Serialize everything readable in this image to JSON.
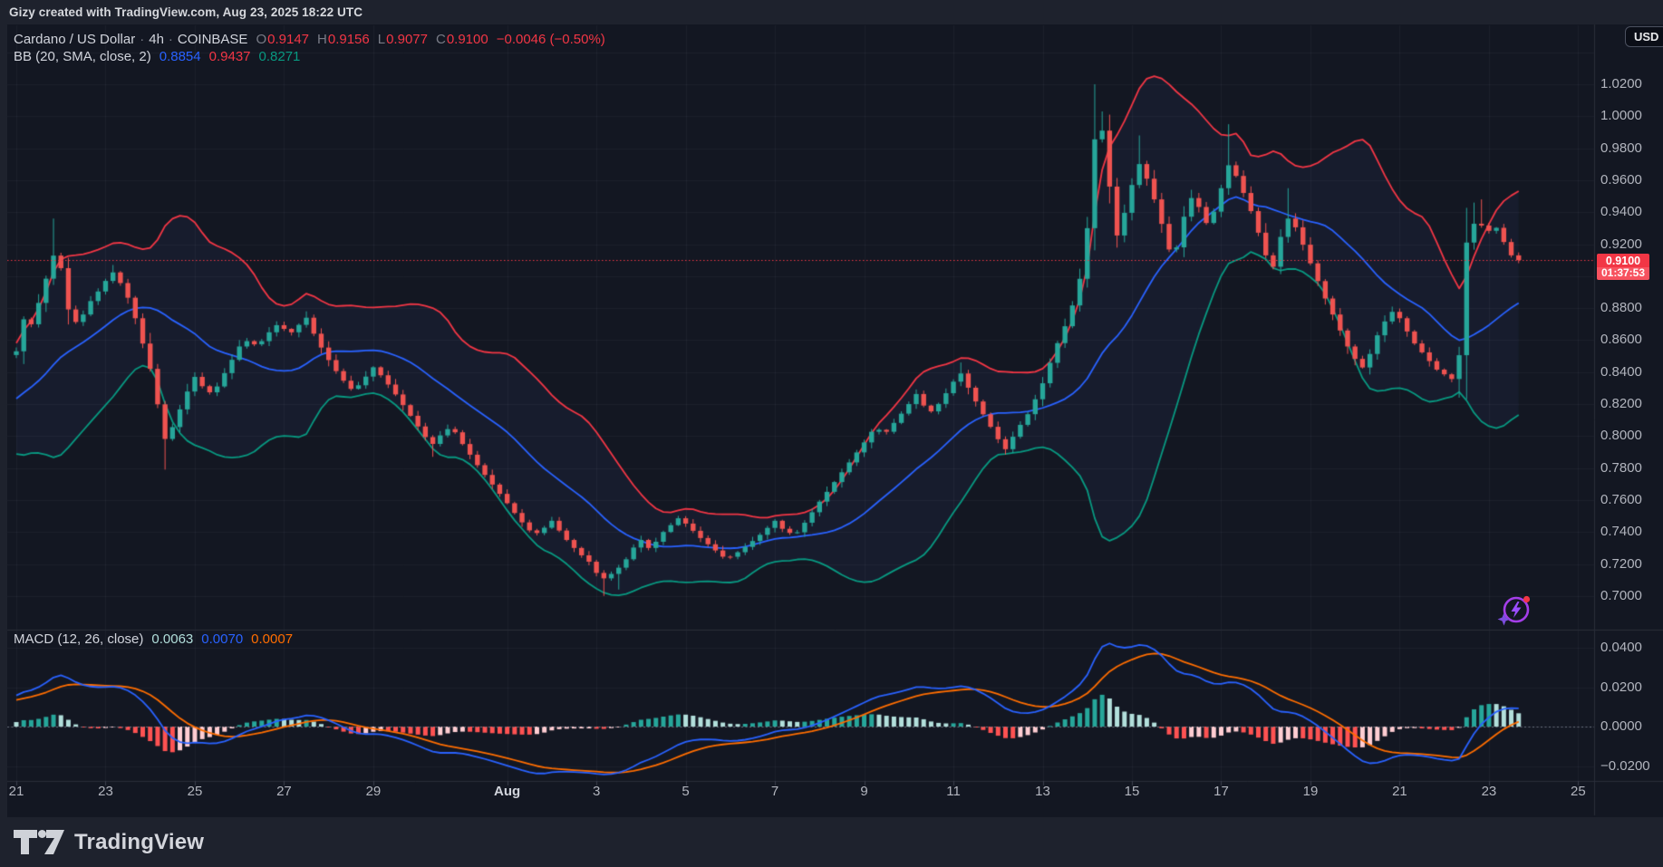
{
  "header": {
    "title": "Gizy created with TradingView.com, Aug 23, 2025 18:22 UTC"
  },
  "toolbar": {
    "currency_label": "USD"
  },
  "footer": {
    "brand": "TradingView"
  },
  "legend": {
    "symbol_row": {
      "title": "Cardano / US Dollar",
      "separator": "·",
      "interval": "4h",
      "exchange": "COINBASE",
      "ohlc": [
        {
          "label": "O",
          "value": "0.9147"
        },
        {
          "label": "H",
          "value": "0.9156"
        },
        {
          "label": "L",
          "value": "0.9077"
        },
        {
          "label": "C",
          "value": "0.9100"
        }
      ],
      "change": "−0.0046 (−0.50%)"
    },
    "bb_row": {
      "label": "BB (20, SMA, close, 2)",
      "values": [
        {
          "text": "0.8854",
          "color": "#2962ff"
        },
        {
          "text": "0.9437",
          "color": "#f23645"
        },
        {
          "text": "0.8271",
          "color": "#089981"
        }
      ]
    },
    "macd_row": {
      "label": "MACD (12, 26, close)",
      "values": [
        {
          "text": "0.0063",
          "color": "#b2dfdb"
        },
        {
          "text": "0.0070",
          "color": "#2962ff"
        },
        {
          "text": "0.0007",
          "color": "#ff6d00"
        }
      ]
    }
  },
  "price_scale": {
    "labels": [
      "1.0200",
      "1.0000",
      "0.9800",
      "0.9600",
      "0.9400",
      "0.9200",
      "0.8800",
      "0.8600",
      "0.8400",
      "0.8200",
      "0.8000",
      "0.7800",
      "0.7600",
      "0.7400",
      "0.7200",
      "0.7000"
    ],
    "gridlines": [
      1.04,
      1.02,
      1.0,
      0.98,
      0.96,
      0.94,
      0.92,
      0.9,
      0.88,
      0.86,
      0.84,
      0.82,
      0.8,
      0.78,
      0.76,
      0.74,
      0.72,
      0.7
    ],
    "last_price_label": {
      "price": "0.9100",
      "countdown": "01:37:53"
    }
  },
  "macd_scale": {
    "labels": [
      {
        "text": "0.0400",
        "v": 0.04
      },
      {
        "text": "0.0200",
        "v": 0.02
      },
      {
        "text": "0.0000",
        "v": 0.0
      },
      {
        "text": "−0.0200",
        "v": -0.02
      }
    ]
  },
  "time_scale": {
    "labels": [
      {
        "text": "21",
        "d": 0
      },
      {
        "text": "23",
        "d": 2
      },
      {
        "text": "25",
        "d": 4
      },
      {
        "text": "27",
        "d": 6
      },
      {
        "text": "29",
        "d": 8
      },
      {
        "text": "Aug",
        "d": 11,
        "major": true
      },
      {
        "text": "3",
        "d": 13
      },
      {
        "text": "5",
        "d": 15
      },
      {
        "text": "7",
        "d": 17
      },
      {
        "text": "9",
        "d": 19
      },
      {
        "text": "11",
        "d": 21
      },
      {
        "text": "13",
        "d": 23
      },
      {
        "text": "15",
        "d": 25
      },
      {
        "text": "17",
        "d": 27
      },
      {
        "text": "19",
        "d": 29
      },
      {
        "text": "21",
        "d": 31
      },
      {
        "text": "23",
        "d": 33
      },
      {
        "text": "25",
        "d": 35
      }
    ]
  },
  "colors": {
    "up": "#26a69a",
    "down": "#ef5350",
    "bb_upper": "#f23645",
    "bb_basis": "#2962ff",
    "bb_lower": "#089981",
    "bb_fill": "rgba(94,134,255,0.05)",
    "macd_line": "#2962ff",
    "signal_line": "#ff6d00",
    "hist_up": "#26a69a",
    "hist_up_fade": "#b2dfdb",
    "hist_down": "#ff5252",
    "hist_down_fade": "#ffcdd2",
    "price_line": "#f23645",
    "grid": "rgba(240,243,250,0.045)",
    "border": "#2a2e39",
    "tick": "#3a3e4b"
  },
  "chart_data": {
    "type": "candlestick",
    "title": "Cardano / US Dollar",
    "exchange": "COINBASE",
    "interval": "4h",
    "legend_note": "upper pane: candles + Bollinger Bands(20,2); lower pane: MACD(12,26,9)",
    "price_axis": {
      "min": 0.69,
      "max": 1.04,
      "step": 0.02
    },
    "macd_axis": {
      "min": -0.03,
      "max": 0.05,
      "step": 0.02
    },
    "time": {
      "d_start": -6,
      "d_end": 33.67,
      "candles_per_day": 6,
      "first_visible_day": "Jul 21",
      "last_label": "Aug 25"
    },
    "ohlc_last": {
      "open": 0.9147,
      "high": 0.9156,
      "low": 0.9077,
      "close": 0.91,
      "change": -0.0046,
      "change_pct": -0.5
    },
    "indicators": {
      "bollinger": {
        "length": 20,
        "source": "close",
        "mult": 2,
        "last": {
          "basis": 0.8854,
          "upper": 0.9437,
          "lower": 0.8271
        }
      },
      "macd": {
        "fast": 12,
        "slow": 26,
        "smoothing": 9,
        "last": {
          "histogram": 0.0063,
          "macd": 0.007,
          "signal": 0.0007
        }
      }
    },
    "close_path": [
      [
        -6,
        0.772
      ],
      [
        -5,
        0.78
      ],
      [
        -4,
        0.79
      ],
      [
        -3,
        0.801
      ],
      [
        -2,
        0.813
      ],
      [
        -1,
        0.832
      ],
      [
        -0.5,
        0.846
      ],
      [
        0,
        0.853
      ],
      [
        0.2,
        0.877
      ],
      [
        0.35,
        0.869
      ],
      [
        0.55,
        0.888
      ],
      [
        0.83,
        0.913
      ],
      [
        1.0,
        0.905
      ],
      [
        1.2,
        0.874
      ],
      [
        1.4,
        0.87
      ],
      [
        1.6,
        0.882
      ],
      [
        1.85,
        0.891
      ],
      [
        2.0,
        0.897
      ],
      [
        2.15,
        0.903
      ],
      [
        2.4,
        0.893
      ],
      [
        2.6,
        0.88
      ],
      [
        2.8,
        0.861
      ],
      [
        3.0,
        0.842
      ],
      [
        3.15,
        0.822
      ],
      [
        3.35,
        0.796
      ],
      [
        3.6,
        0.812
      ],
      [
        3.8,
        0.826
      ],
      [
        4.0,
        0.837
      ],
      [
        4.2,
        0.83
      ],
      [
        4.4,
        0.826
      ],
      [
        4.7,
        0.841
      ],
      [
        5.0,
        0.856
      ],
      [
        5.2,
        0.86
      ],
      [
        5.4,
        0.856
      ],
      [
        5.7,
        0.866
      ],
      [
        5.9,
        0.871
      ],
      [
        6.1,
        0.863
      ],
      [
        6.35,
        0.87
      ],
      [
        6.5,
        0.874
      ],
      [
        6.7,
        0.862
      ],
      [
        6.9,
        0.852
      ],
      [
        7.1,
        0.843
      ],
      [
        7.35,
        0.834
      ],
      [
        7.55,
        0.828
      ],
      [
        7.8,
        0.836
      ],
      [
        8.0,
        0.843
      ],
      [
        8.2,
        0.837
      ],
      [
        8.45,
        0.828
      ],
      [
        8.7,
        0.818
      ],
      [
        9.0,
        0.806
      ],
      [
        9.3,
        0.794
      ],
      [
        9.55,
        0.802
      ],
      [
        9.75,
        0.806
      ],
      [
        10.0,
        0.795
      ],
      [
        10.3,
        0.783
      ],
      [
        10.6,
        0.772
      ],
      [
        11.0,
        0.758
      ],
      [
        11.3,
        0.747
      ],
      [
        11.6,
        0.738
      ],
      [
        11.85,
        0.743
      ],
      [
        12.0,
        0.747
      ],
      [
        12.3,
        0.736
      ],
      [
        12.6,
        0.727
      ],
      [
        12.85,
        0.721
      ],
      [
        13.1,
        0.71
      ],
      [
        13.3,
        0.713
      ],
      [
        13.6,
        0.72
      ],
      [
        13.85,
        0.731
      ],
      [
        14.0,
        0.735
      ],
      [
        14.2,
        0.729
      ],
      [
        14.5,
        0.74
      ],
      [
        14.85,
        0.749
      ],
      [
        15.05,
        0.744
      ],
      [
        15.3,
        0.737
      ],
      [
        15.6,
        0.73
      ],
      [
        15.9,
        0.723
      ],
      [
        16.1,
        0.726
      ],
      [
        16.4,
        0.732
      ],
      [
        16.7,
        0.739
      ],
      [
        17.0,
        0.747
      ],
      [
        17.2,
        0.741
      ],
      [
        17.45,
        0.738
      ],
      [
        17.7,
        0.747
      ],
      [
        18.0,
        0.759
      ],
      [
        18.3,
        0.77
      ],
      [
        18.6,
        0.781
      ],
      [
        19.0,
        0.796
      ],
      [
        19.25,
        0.806
      ],
      [
        19.45,
        0.801
      ],
      [
        19.75,
        0.811
      ],
      [
        20.0,
        0.82
      ],
      [
        20.15,
        0.827
      ],
      [
        20.45,
        0.814
      ],
      [
        20.7,
        0.821
      ],
      [
        21.0,
        0.834
      ],
      [
        21.15,
        0.84
      ],
      [
        21.45,
        0.824
      ],
      [
        21.7,
        0.812
      ],
      [
        22.0,
        0.798
      ],
      [
        22.15,
        0.791
      ],
      [
        22.45,
        0.805
      ],
      [
        22.7,
        0.815
      ],
      [
        23.0,
        0.833
      ],
      [
        23.3,
        0.856
      ],
      [
        23.6,
        0.875
      ],
      [
        23.85,
        0.9
      ],
      [
        24.0,
        0.93
      ],
      [
        24.15,
        0.984
      ],
      [
        24.3,
        0.998
      ],
      [
        24.5,
        0.956
      ],
      [
        24.65,
        0.924
      ],
      [
        24.85,
        0.941
      ],
      [
        25.0,
        0.957
      ],
      [
        25.15,
        0.971
      ],
      [
        25.35,
        0.96
      ],
      [
        25.6,
        0.94
      ],
      [
        25.8,
        0.918
      ],
      [
        25.95,
        0.912
      ],
      [
        26.15,
        0.936
      ],
      [
        26.35,
        0.95
      ],
      [
        26.55,
        0.941
      ],
      [
        26.7,
        0.931
      ],
      [
        26.9,
        0.945
      ],
      [
        27.05,
        0.96
      ],
      [
        27.2,
        0.972
      ],
      [
        27.4,
        0.958
      ],
      [
        27.6,
        0.946
      ],
      [
        27.8,
        0.93
      ],
      [
        28.0,
        0.913
      ],
      [
        28.15,
        0.904
      ],
      [
        28.4,
        0.932
      ],
      [
        28.55,
        0.938
      ],
      [
        28.8,
        0.922
      ],
      [
        29.0,
        0.908
      ],
      [
        29.3,
        0.888
      ],
      [
        29.6,
        0.87
      ],
      [
        29.85,
        0.855
      ],
      [
        30.05,
        0.846
      ],
      [
        30.2,
        0.842
      ],
      [
        30.5,
        0.863
      ],
      [
        30.75,
        0.876
      ],
      [
        30.9,
        0.879
      ],
      [
        31.05,
        0.871
      ],
      [
        31.3,
        0.859
      ],
      [
        31.6,
        0.849
      ],
      [
        31.85,
        0.841
      ],
      [
        32.1,
        0.837
      ],
      [
        32.3,
        0.833
      ],
      [
        32.45,
        0.912
      ],
      [
        32.6,
        0.939
      ],
      [
        32.75,
        0.925
      ],
      [
        32.9,
        0.937
      ],
      [
        33.05,
        0.924
      ],
      [
        33.2,
        0.932
      ],
      [
        33.35,
        0.92
      ],
      [
        33.5,
        0.913
      ],
      [
        33.58,
        0.91
      ]
    ],
    "extremes": [
      {
        "d": 0.83,
        "high": 0.936
      },
      {
        "d": 2.15,
        "high": 0.907
      },
      {
        "d": 3.35,
        "low": 0.779
      },
      {
        "d": 6.5,
        "high": 0.878
      },
      {
        "d": 9.3,
        "low": 0.787
      },
      {
        "d": 13.1,
        "low": 0.7
      },
      {
        "d": 13.5,
        "low": 0.704
      },
      {
        "d": 21.15,
        "high": 0.846
      },
      {
        "d": 24.15,
        "high": 1.02
      },
      {
        "d": 24.3,
        "high": 1.003
      },
      {
        "d": 25.15,
        "high": 0.988
      },
      {
        "d": 27.2,
        "high": 0.995
      },
      {
        "d": 28.55,
        "high": 0.955
      },
      {
        "d": 32.3,
        "low": 0.824
      },
      {
        "d": 32.45,
        "low": 0.823
      },
      {
        "d": 32.6,
        "high": 0.946
      },
      {
        "d": 32.9,
        "high": 0.948
      }
    ]
  }
}
